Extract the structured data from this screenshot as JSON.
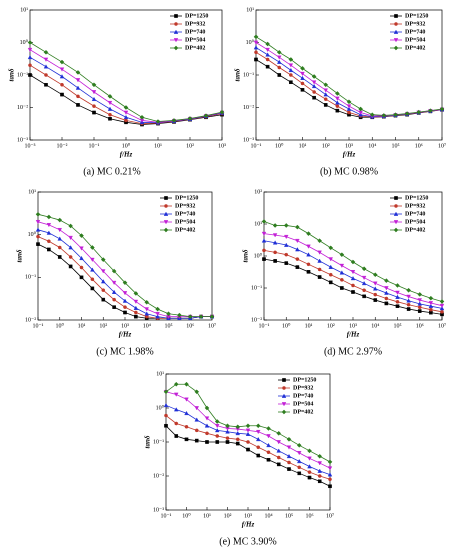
{
  "chart_data": [
    {
      "type": "line",
      "caption": "(a) MC 0.21%",
      "xlabel": "f/Hz",
      "ylabel": "tanδ",
      "xscale": "log",
      "yscale": "log",
      "legend": "upper right",
      "x": [
        0.001,
        0.00316,
        0.01,
        0.0316,
        0.1,
        0.316,
        1,
        3.16,
        10,
        31.6,
        100,
        316,
        1000
      ],
      "xlim": [
        0.001,
        1000
      ],
      "ylim": [
        0.001,
        10
      ],
      "xticks": [
        {
          "value": 0.001,
          "label": "10⁻³"
        },
        {
          "value": 0.01,
          "label": "10⁻²"
        },
        {
          "value": 0.1,
          "label": "10⁻¹"
        },
        {
          "value": 1,
          "label": "10⁰"
        },
        {
          "value": 10,
          "label": "10¹"
        },
        {
          "value": 100,
          "label": "10²"
        },
        {
          "value": 1000,
          "label": "10³"
        }
      ],
      "yticks": [
        {
          "value": 0.001,
          "label": "10⁻³"
        },
        {
          "value": 0.01,
          "label": "10⁻²"
        },
        {
          "value": 0.1,
          "label": "10⁻¹"
        },
        {
          "value": 1,
          "label": "10⁰"
        },
        {
          "value": 10,
          "label": "10¹"
        }
      ],
      "series": [
        {
          "name": "DP=1250",
          "color": "#000000",
          "marker": "square",
          "values": [
            0.1,
            0.05,
            0.025,
            0.012,
            0.007,
            0.0045,
            0.0035,
            0.003,
            0.0032,
            0.0036,
            0.0042,
            0.005,
            0.006
          ]
        },
        {
          "name": "DP=932",
          "color": "#c0392b",
          "marker": "circle",
          "values": [
            0.2,
            0.1,
            0.05,
            0.022,
            0.011,
            0.006,
            0.004,
            0.0032,
            0.0033,
            0.0037,
            0.0043,
            0.0052,
            0.0065
          ]
        },
        {
          "name": "DP=740",
          "color": "#1f2fd6",
          "marker": "triangle-up",
          "values": [
            0.35,
            0.18,
            0.09,
            0.04,
            0.018,
            0.009,
            0.005,
            0.0035,
            0.0034,
            0.0038,
            0.0044,
            0.0054,
            0.0068
          ]
        },
        {
          "name": "DP=504",
          "color": "#c21fd6",
          "marker": "triangle-down",
          "values": [
            0.6,
            0.3,
            0.15,
            0.07,
            0.03,
            0.014,
            0.007,
            0.004,
            0.0035,
            0.0039,
            0.0045,
            0.0055,
            0.007
          ]
        },
        {
          "name": "DP=402",
          "color": "#2e7d1f",
          "marker": "diamond",
          "values": [
            1,
            0.5,
            0.25,
            0.12,
            0.05,
            0.022,
            0.01,
            0.005,
            0.0037,
            0.004,
            0.0046,
            0.0056,
            0.0072
          ]
        }
      ]
    },
    {
      "type": "line",
      "caption": "(b) MC 0.98%",
      "xlabel": "f/Hz",
      "ylabel": "tanδ",
      "xscale": "log",
      "yscale": "log",
      "legend": "upper right",
      "x": [
        0.1,
        0.316,
        1,
        3.16,
        10,
        31.6,
        100,
        316,
        1000,
        3160,
        10000,
        31600,
        100000,
        316000,
        1000000,
        3160000,
        10000000
      ],
      "xlim": [
        0.1,
        10000000
      ],
      "ylim": [
        0.001,
        10
      ],
      "xticks": [
        {
          "value": 0.1,
          "label": "10⁻¹"
        },
        {
          "value": 1,
          "label": "10⁰"
        },
        {
          "value": 10,
          "label": "10¹"
        },
        {
          "value": 100,
          "label": "10²"
        },
        {
          "value": 1000,
          "label": "10³"
        },
        {
          "value": 10000,
          "label": "10⁴"
        },
        {
          "value": 100000,
          "label": "10⁵"
        },
        {
          "value": 1000000,
          "label": "10⁶"
        },
        {
          "value": 10000000,
          "label": "10⁷"
        }
      ],
      "yticks": [
        {
          "value": 0.001,
          "label": "10⁻³"
        },
        {
          "value": 0.01,
          "label": "10⁻²"
        },
        {
          "value": 0.1,
          "label": "10⁻¹"
        },
        {
          "value": 1,
          "label": "10⁰"
        },
        {
          "value": 10,
          "label": "10¹"
        }
      ],
      "series": [
        {
          "name": "DP=1250",
          "color": "#000000",
          "marker": "square",
          "values": [
            0.3,
            0.18,
            0.1,
            0.06,
            0.035,
            0.02,
            0.012,
            0.008,
            0.006,
            0.005,
            0.005,
            0.0052,
            0.0056,
            0.006,
            0.0068,
            0.0076,
            0.0085
          ]
        },
        {
          "name": "DP=932",
          "color": "#c0392b",
          "marker": "circle",
          "values": [
            0.5,
            0.3,
            0.17,
            0.1,
            0.055,
            0.03,
            0.018,
            0.011,
            0.007,
            0.0055,
            0.0051,
            0.0053,
            0.0057,
            0.0062,
            0.0069,
            0.0077,
            0.0086
          ]
        },
        {
          "name": "DP=740",
          "color": "#1f2fd6",
          "marker": "triangle-up",
          "values": [
            0.7,
            0.42,
            0.25,
            0.14,
            0.08,
            0.045,
            0.025,
            0.014,
            0.009,
            0.006,
            0.0052,
            0.0054,
            0.0058,
            0.0063,
            0.007,
            0.0078,
            0.0087
          ]
        },
        {
          "name": "DP=504",
          "color": "#c21fd6",
          "marker": "triangle-down",
          "values": [
            1,
            0.6,
            0.35,
            0.2,
            0.11,
            0.06,
            0.034,
            0.019,
            0.011,
            0.007,
            0.0055,
            0.0055,
            0.0059,
            0.0064,
            0.0071,
            0.0079,
            0.0088
          ]
        },
        {
          "name": "DP=402",
          "color": "#2e7d1f",
          "marker": "diamond",
          "values": [
            1.5,
            0.9,
            0.5,
            0.3,
            0.16,
            0.09,
            0.05,
            0.027,
            0.015,
            0.009,
            0.006,
            0.0057,
            0.006,
            0.0065,
            0.0072,
            0.008,
            0.009
          ]
        }
      ]
    },
    {
      "type": "line",
      "caption": "(c) MC 1.98%",
      "xlabel": "f/Hz",
      "ylabel": "tanδ",
      "xscale": "log",
      "yscale": "log",
      "legend": "upper right",
      "x": [
        0.1,
        0.316,
        1,
        3.16,
        10,
        31.6,
        100,
        316,
        1000,
        3160,
        10000,
        31600,
        100000,
        316000,
        1000000,
        3160000,
        10000000
      ],
      "xlim": [
        0.1,
        10000000
      ],
      "ylim": [
        0.01,
        10
      ],
      "xticks": [
        {
          "value": 0.1,
          "label": "10⁻¹"
        },
        {
          "value": 1,
          "label": "10⁰"
        },
        {
          "value": 10,
          "label": "10¹"
        },
        {
          "value": 100,
          "label": "10²"
        },
        {
          "value": 1000,
          "label": "10³"
        },
        {
          "value": 10000,
          "label": "10⁴"
        },
        {
          "value": 100000,
          "label": "10⁵"
        },
        {
          "value": 1000000,
          "label": "10⁶"
        },
        {
          "value": 10000000,
          "label": "10⁷"
        }
      ],
      "yticks": [
        {
          "value": 0.01,
          "label": "10⁻²"
        },
        {
          "value": 0.1,
          "label": "10⁻¹"
        },
        {
          "value": 1,
          "label": "10⁰"
        },
        {
          "value": 10,
          "label": "10¹"
        }
      ],
      "series": [
        {
          "name": "DP=1250",
          "color": "#000000",
          "marker": "square",
          "values": [
            0.6,
            0.45,
            0.3,
            0.18,
            0.1,
            0.055,
            0.03,
            0.02,
            0.015,
            0.012,
            0.011,
            0.011,
            0.011,
            0.011,
            0.011,
            0.012,
            0.012
          ]
        },
        {
          "name": "DP=932",
          "color": "#c0392b",
          "marker": "circle",
          "values": [
            0.9,
            0.7,
            0.5,
            0.3,
            0.17,
            0.09,
            0.05,
            0.03,
            0.02,
            0.015,
            0.012,
            0.011,
            0.011,
            0.011,
            0.011,
            0.012,
            0.012
          ]
        },
        {
          "name": "DP=740",
          "color": "#1f2fd6",
          "marker": "triangle-up",
          "values": [
            1.3,
            1.1,
            0.8,
            0.5,
            0.28,
            0.15,
            0.08,
            0.045,
            0.028,
            0.019,
            0.014,
            0.012,
            0.011,
            0.011,
            0.011,
            0.012,
            0.012
          ]
        },
        {
          "name": "DP=504",
          "color": "#c21fd6",
          "marker": "triangle-down",
          "values": [
            2,
            1.7,
            1.3,
            0.85,
            0.48,
            0.26,
            0.14,
            0.075,
            0.043,
            0.027,
            0.018,
            0.014,
            0.012,
            0.012,
            0.012,
            0.012,
            0.012
          ]
        },
        {
          "name": "DP=402",
          "color": "#2e7d1f",
          "marker": "diamond",
          "values": [
            3,
            2.6,
            2.2,
            1.6,
            0.95,
            0.5,
            0.26,
            0.14,
            0.075,
            0.042,
            0.026,
            0.018,
            0.014,
            0.013,
            0.012,
            0.012,
            0.012
          ]
        }
      ]
    },
    {
      "type": "line",
      "caption": "(d) MC 2.97%",
      "xlabel": "f/Hz",
      "ylabel": "tanδ",
      "xscale": "log",
      "yscale": "log",
      "legend": "upper right",
      "x": [
        0.1,
        0.316,
        1,
        3.16,
        10,
        31.6,
        100,
        316,
        1000,
        3160,
        10000,
        31600,
        100000,
        316000,
        1000000,
        3160000,
        10000000
      ],
      "xlim": [
        0.1,
        10000000
      ],
      "ylim": [
        0.01,
        100
      ],
      "xticks": [
        {
          "value": 0.1,
          "label": "10⁻¹"
        },
        {
          "value": 1,
          "label": "10⁰"
        },
        {
          "value": 10,
          "label": "10¹"
        },
        {
          "value": 100,
          "label": "10²"
        },
        {
          "value": 1000,
          "label": "10³"
        },
        {
          "value": 10000,
          "label": "10⁴"
        },
        {
          "value": 100000,
          "label": "10⁵"
        },
        {
          "value": 1000000,
          "label": "10⁶"
        },
        {
          "value": 10000000,
          "label": "10⁷"
        }
      ],
      "yticks": [
        {
          "value": 0.01,
          "label": "10⁻²"
        },
        {
          "value": 0.1,
          "label": "10⁻¹"
        },
        {
          "value": 1,
          "label": "10⁰"
        },
        {
          "value": 10,
          "label": "10¹"
        },
        {
          "value": 100,
          "label": "10²"
        }
      ],
      "series": [
        {
          "name": "DP=1250",
          "color": "#000000",
          "marker": "square",
          "values": [
            0.8,
            0.7,
            0.6,
            0.45,
            0.32,
            0.22,
            0.15,
            0.1,
            0.075,
            0.055,
            0.042,
            0.033,
            0.027,
            0.022,
            0.019,
            0.017,
            0.015
          ]
        },
        {
          "name": "DP=932",
          "color": "#c0392b",
          "marker": "circle",
          "values": [
            1.5,
            1.3,
            1.1,
            0.8,
            0.55,
            0.38,
            0.26,
            0.18,
            0.12,
            0.085,
            0.062,
            0.047,
            0.037,
            0.03,
            0.025,
            0.021,
            0.018
          ]
        },
        {
          "name": "DP=740",
          "color": "#1f2fd6",
          "marker": "triangle-up",
          "values": [
            3,
            2.6,
            2.2,
            1.6,
            1.1,
            0.7,
            0.45,
            0.3,
            0.2,
            0.14,
            0.095,
            0.07,
            0.052,
            0.04,
            0.032,
            0.027,
            0.023
          ]
        },
        {
          "name": "DP=504",
          "color": "#c21fd6",
          "marker": "triangle-down",
          "values": [
            5,
            4.5,
            4,
            3,
            2,
            1.3,
            0.8,
            0.5,
            0.32,
            0.21,
            0.14,
            0.1,
            0.072,
            0.054,
            0.042,
            0.034,
            0.028
          ]
        },
        {
          "name": "DP=402",
          "color": "#2e7d1f",
          "marker": "diamond",
          "values": [
            12,
            9,
            9,
            8,
            5,
            3,
            1.8,
            1.1,
            0.65,
            0.4,
            0.26,
            0.17,
            0.12,
            0.085,
            0.063,
            0.048,
            0.038
          ]
        }
      ]
    },
    {
      "type": "line",
      "caption": "(e) MC 3.90%",
      "xlabel": "f/Hz",
      "ylabel": "tanδ",
      "xscale": "log",
      "yscale": "log",
      "legend": "upper right",
      "x": [
        0.1,
        0.316,
        1,
        3.16,
        10,
        31.6,
        100,
        316,
        1000,
        3160,
        10000,
        31600,
        100000,
        316000,
        1000000,
        3160000,
        10000000
      ],
      "xlim": [
        0.1,
        10000000
      ],
      "ylim": [
        0.001,
        10
      ],
      "xticks": [
        {
          "value": 0.1,
          "label": "10⁻¹"
        },
        {
          "value": 1,
          "label": "10⁰"
        },
        {
          "value": 10,
          "label": "10¹"
        },
        {
          "value": 100,
          "label": "10²"
        },
        {
          "value": 1000,
          "label": "10³"
        },
        {
          "value": 10000,
          "label": "10⁴"
        },
        {
          "value": 100000,
          "label": "10⁵"
        },
        {
          "value": 1000000,
          "label": "10⁶"
        },
        {
          "value": 10000000,
          "label": "10⁷"
        }
      ],
      "yticks": [
        {
          "value": 0.001,
          "label": "10⁻³"
        },
        {
          "value": 0.01,
          "label": "10⁻²"
        },
        {
          "value": 0.1,
          "label": "10⁻¹"
        },
        {
          "value": 1,
          "label": "10⁰"
        },
        {
          "value": 10,
          "label": "10¹"
        }
      ],
      "series": [
        {
          "name": "DP=1250",
          "color": "#000000",
          "marker": "square",
          "values": [
            0.3,
            0.15,
            0.12,
            0.11,
            0.1,
            0.1,
            0.1,
            0.09,
            0.06,
            0.04,
            0.03,
            0.022,
            0.016,
            0.012,
            0.009,
            0.007,
            0.005
          ]
        },
        {
          "name": "DP=932",
          "color": "#c0392b",
          "marker": "circle",
          "values": [
            0.6,
            0.35,
            0.28,
            0.22,
            0.18,
            0.15,
            0.13,
            0.12,
            0.1,
            0.07,
            0.05,
            0.035,
            0.025,
            0.018,
            0.013,
            0.01,
            0.008
          ]
        },
        {
          "name": "DP=740",
          "color": "#1f2fd6",
          "marker": "triangle-up",
          "values": [
            1.2,
            0.9,
            0.7,
            0.45,
            0.3,
            0.22,
            0.2,
            0.18,
            0.17,
            0.12,
            0.08,
            0.055,
            0.038,
            0.027,
            0.019,
            0.014,
            0.011
          ]
        },
        {
          "name": "DP=504",
          "color": "#c21fd6",
          "marker": "triangle-down",
          "values": [
            3,
            2.5,
            1.8,
            1,
            0.5,
            0.3,
            0.25,
            0.24,
            0.22,
            0.2,
            0.15,
            0.1,
            0.07,
            0.048,
            0.033,
            0.024,
            0.017
          ]
        },
        {
          "name": "DP=402",
          "color": "#2e7d1f",
          "marker": "diamond",
          "values": [
            3,
            5,
            5,
            3,
            1,
            0.4,
            0.3,
            0.28,
            0.3,
            0.3,
            0.25,
            0.18,
            0.12,
            0.08,
            0.055,
            0.038,
            0.026
          ]
        }
      ]
    }
  ]
}
